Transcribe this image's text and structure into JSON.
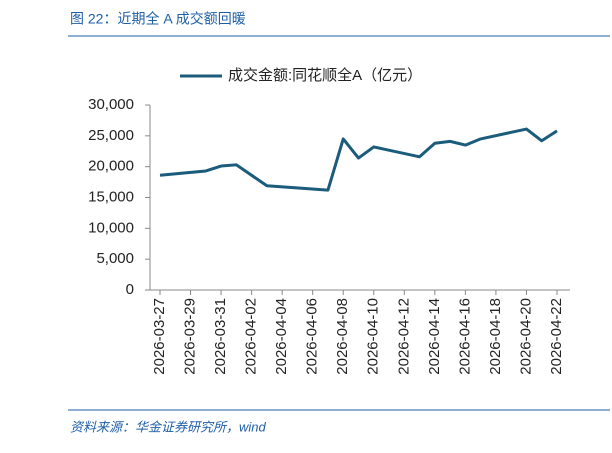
{
  "chart_data": {
    "type": "line",
    "title": "图 22：近期全 A 成交额回暖",
    "source": "资料来源：华金证券研究所，wind",
    "series": [
      {
        "name": "成交金额:同花顺全A（亿元）",
        "color": "#1b5b7b",
        "values": [
          18600,
          19300,
          20100,
          20300,
          16900,
          16200,
          24500,
          21400,
          23200,
          21600,
          23800,
          24100,
          23500,
          24500,
          26100,
          24200,
          25800
        ]
      }
    ],
    "x": [
      "2026-03-27",
      "2026-03-30",
      "2026-03-31",
      "2026-04-01",
      "2026-04-03",
      "2026-04-07",
      "2026-04-08",
      "2026-04-09",
      "2026-04-10",
      "2026-04-13",
      "2026-04-14",
      "2026-04-15",
      "2026-04-16",
      "2026-04-17",
      "2026-04-20",
      "2026-04-21",
      "2026-04-22"
    ],
    "xlim": [
      "2026-03-27",
      "2026-04-22"
    ],
    "xticks": [
      "2026-03-27",
      "2026-03-29",
      "2026-03-31",
      "2026-04-02",
      "2026-04-04",
      "2026-04-06",
      "2026-04-08",
      "2026-04-10",
      "2026-04-12",
      "2026-04-14",
      "2026-04-16",
      "2026-04-18",
      "2026-04-20",
      "2026-04-22"
    ],
    "ylim": [
      0,
      30000
    ],
    "yticks": [
      0,
      {
        "value": 5000,
        "label": "5,000"
      },
      {
        "value": 10000,
        "label": "10,000"
      },
      {
        "value": 15000,
        "label": "15,000"
      },
      {
        "value": 20000,
        "label": "20,000"
      },
      {
        "value": 25000,
        "label": "25,000"
      },
      {
        "value": 30000,
        "label": "30,000"
      }
    ],
    "legend": "top"
  }
}
